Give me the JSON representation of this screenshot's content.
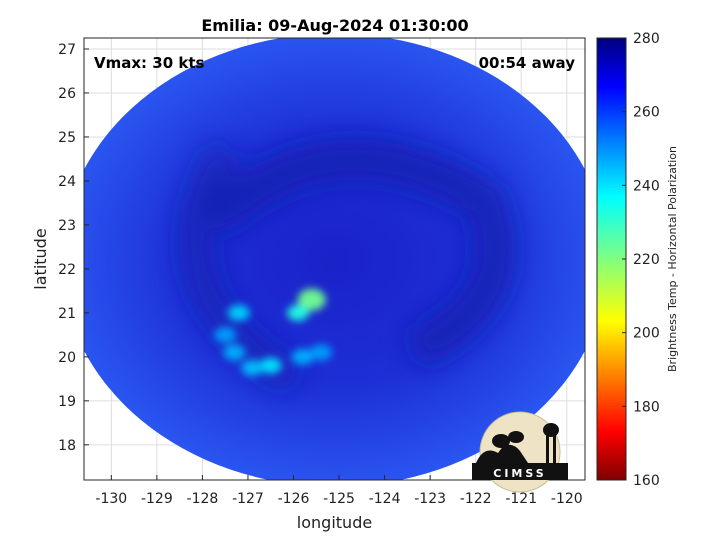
{
  "chart_data": {
    "type": "heatmap",
    "title": "Emilia: 09-Aug-2024 01:30:00",
    "xlabel": "longitude",
    "ylabel": "latitude",
    "xlim": [
      -130.6,
      -119.6
    ],
    "ylim": [
      17.2,
      27.25
    ],
    "xticks": [
      -130,
      -129,
      -128,
      -127,
      -126,
      -125,
      -124,
      -123,
      -122,
      -121,
      -120
    ],
    "yticks": [
      18,
      19,
      20,
      21,
      22,
      23,
      24,
      25,
      26,
      27
    ],
    "grid": true,
    "annotations": {
      "vmax": "Vmax: 30 kts",
      "time_away": "00:54 away"
    },
    "colorbar": {
      "label": "Brightness Temp - Horizontal Polarization",
      "range": [
        160,
        280
      ],
      "ticks": [
        160,
        180,
        200,
        220,
        240,
        260,
        280
      ],
      "colormap": "jet"
    },
    "swath": {
      "center": [
        -125.1,
        22.2
      ],
      "radius_lon": 6.0,
      "radius_lat": 5.15,
      "background_value": 262
    },
    "features": [
      {
        "lon": -125.6,
        "lat": 21.3,
        "value": 222
      },
      {
        "lon": -125.9,
        "lat": 21.0,
        "value": 233
      },
      {
        "lon": -127.2,
        "lat": 21.0,
        "value": 242
      },
      {
        "lon": -127.5,
        "lat": 20.5,
        "value": 248
      },
      {
        "lon": -127.3,
        "lat": 20.1,
        "value": 246
      },
      {
        "lon": -126.5,
        "lat": 19.8,
        "value": 240
      },
      {
        "lon": -126.9,
        "lat": 19.75,
        "value": 244
      },
      {
        "lon": -125.8,
        "lat": 20.0,
        "value": 246
      },
      {
        "lon": -125.4,
        "lat": 20.1,
        "value": 248
      }
    ],
    "logo": "CIMSS"
  }
}
